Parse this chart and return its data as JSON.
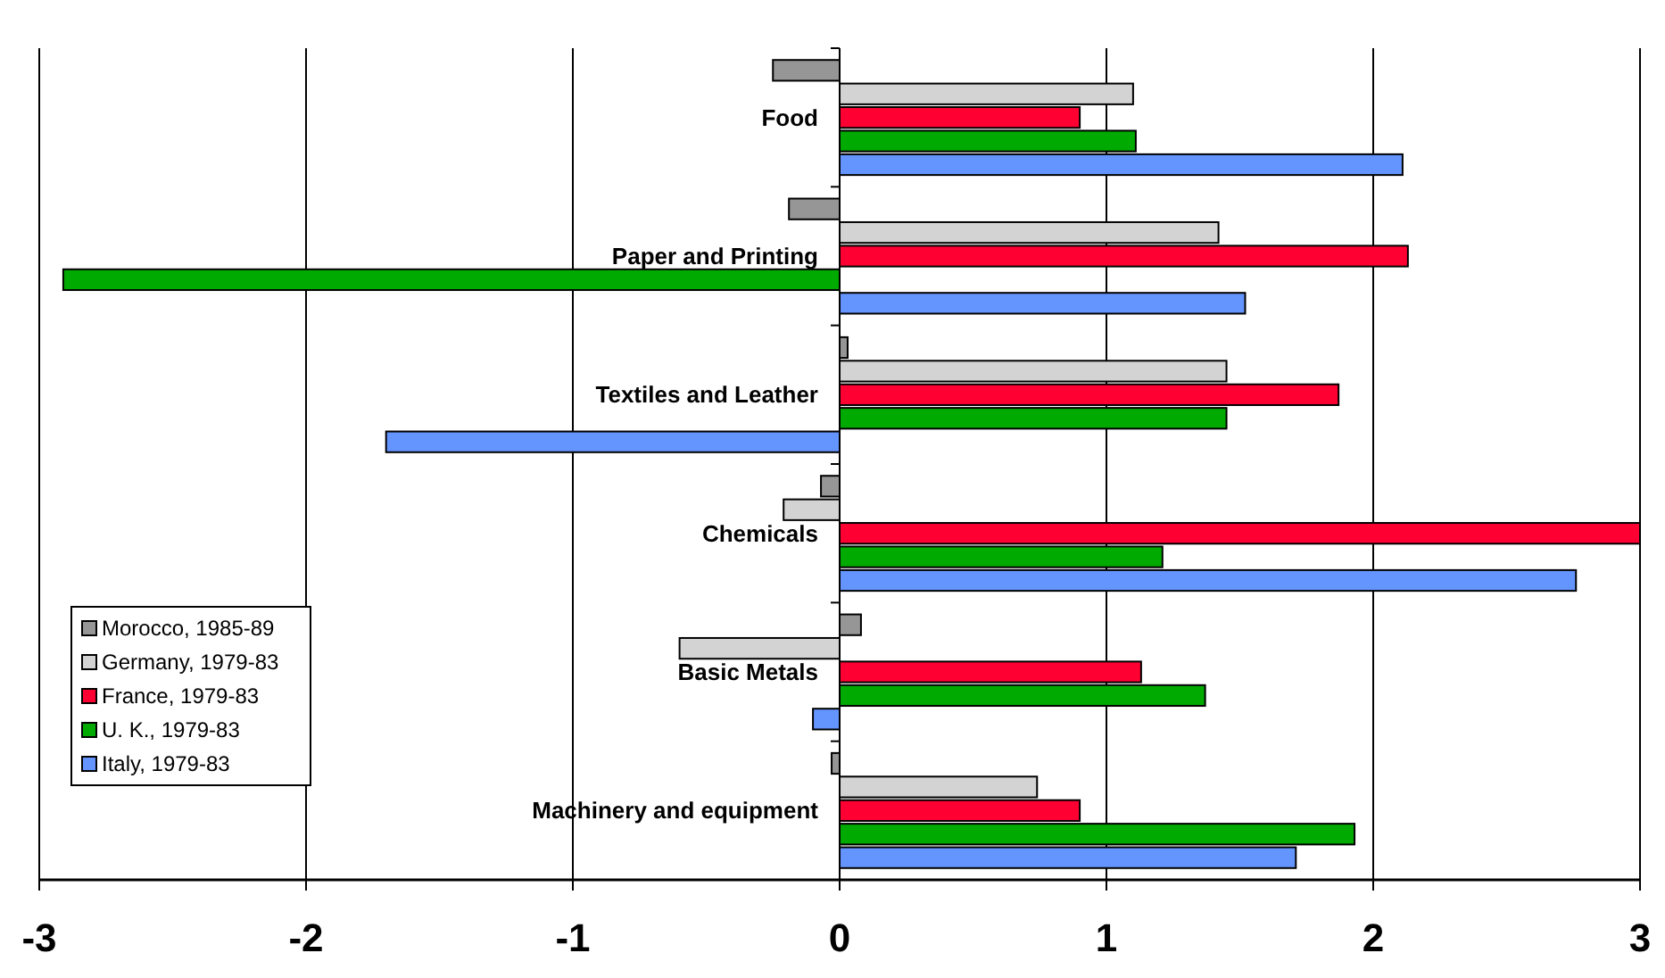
{
  "chart_data": {
    "type": "bar",
    "orientation": "horizontal",
    "categories": [
      "Food",
      "Paper and Printing",
      "Textiles and Leather",
      "Chemicals",
      "Basic Metals",
      "Machinery and equipment"
    ],
    "series": [
      {
        "name": "Morocco, 1985-89",
        "color": "#969696",
        "values": [
          -0.25,
          -0.19,
          0.03,
          -0.07,
          0.08,
          -0.03
        ]
      },
      {
        "name": "Germany, 1979-83",
        "color": "#d3d3d3",
        "values": [
          1.1,
          1.42,
          1.45,
          -0.21,
          -0.6,
          0.74
        ]
      },
      {
        "name": "France, 1979-83",
        "color": "#ff0033",
        "values": [
          0.9,
          2.13,
          1.87,
          3.0,
          1.13,
          0.9
        ]
      },
      {
        "name": "U. K., 1979-83",
        "color": "#00aa00",
        "values": [
          1.11,
          -2.91,
          1.45,
          1.21,
          1.37,
          1.93
        ]
      },
      {
        "name": "Italy, 1979-83",
        "color": "#6495ff",
        "values": [
          2.11,
          1.52,
          -1.7,
          2.76,
          -0.1,
          1.71
        ]
      }
    ],
    "xlim": [
      -3,
      3
    ],
    "xticks": [
      -3,
      -2,
      -1,
      0,
      1,
      2,
      3
    ],
    "grid": "x",
    "legend": "left"
  }
}
